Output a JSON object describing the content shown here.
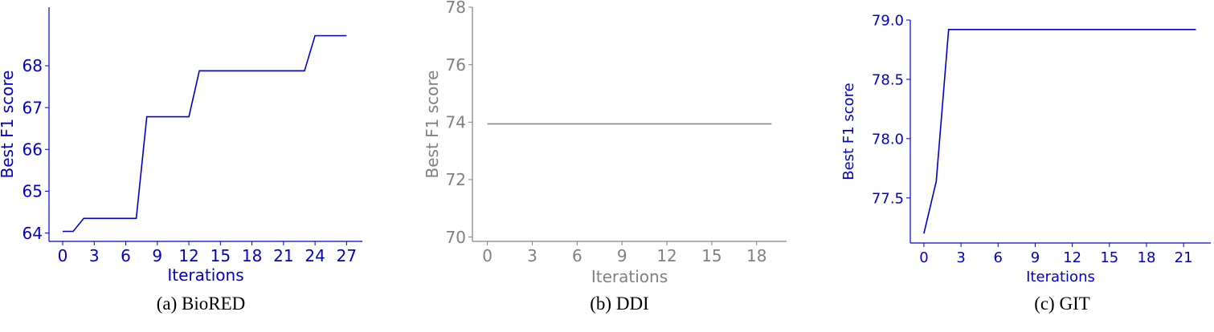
{
  "chart_data": [
    {
      "type": "line",
      "caption": "(a) BioRED",
      "color": "#0000cc",
      "xlabel": "Iterations",
      "ylabel": "Best F1 score",
      "xticks": [
        0,
        3,
        6,
        9,
        12,
        15,
        18,
        21,
        24,
        27
      ],
      "yticks": [
        64,
        65,
        66,
        67,
        68
      ],
      "xlim": [
        -1.3,
        28.5
      ],
      "ylim": [
        63.8,
        69.4
      ],
      "x": [
        0,
        1,
        2,
        3,
        4,
        5,
        6,
        7,
        8,
        9,
        10,
        11,
        12,
        13,
        14,
        15,
        16,
        17,
        18,
        19,
        20,
        21,
        22,
        23,
        24,
        25,
        26,
        27
      ],
      "y": [
        64.04,
        64.04,
        64.35,
        64.35,
        64.35,
        64.35,
        64.35,
        64.35,
        66.78,
        66.78,
        66.78,
        66.78,
        66.78,
        67.88,
        67.88,
        67.88,
        67.88,
        67.88,
        67.88,
        67.88,
        67.88,
        67.88,
        67.88,
        67.88,
        68.72,
        68.72,
        68.72,
        68.72
      ],
      "grid": false
    },
    {
      "type": "line",
      "caption": "(b) DDI",
      "color": "#808080",
      "xlabel": "Iterations",
      "ylabel": "Best F1 score",
      "xticks": [
        0,
        3,
        6,
        9,
        12,
        15,
        18
      ],
      "yticks": [
        70,
        72,
        74,
        76,
        78
      ],
      "xlim": [
        -1,
        20
      ],
      "ylim": [
        69.85,
        78
      ],
      "x": [
        0,
        1,
        2,
        3,
        4,
        5,
        6,
        7,
        8,
        9,
        10,
        11,
        12,
        13,
        14,
        15,
        16,
        17,
        18,
        19
      ],
      "y": [
        73.94,
        73.94,
        73.94,
        73.94,
        73.94,
        73.94,
        73.94,
        73.94,
        73.94,
        73.94,
        73.94,
        73.94,
        73.94,
        73.94,
        73.94,
        73.94,
        73.94,
        73.94,
        73.94,
        73.94
      ],
      "grid": false
    },
    {
      "type": "line",
      "caption": "(c) GIT",
      "color": "#0000cc",
      "xlabel": "Iterations",
      "ylabel": "Best F1 score",
      "xticks": [
        0,
        3,
        6,
        9,
        12,
        15,
        18,
        21
      ],
      "yticks": [
        77.5,
        78.0,
        78.5,
        79.0
      ],
      "ytick_labels": [
        "77.5",
        "78.0",
        "78.5",
        "79.0"
      ],
      "xlim": [
        -1.1,
        23.2
      ],
      "ylim": [
        77.12,
        79.0
      ],
      "x": [
        0,
        1,
        2,
        3,
        4,
        5,
        6,
        7,
        8,
        9,
        10,
        11,
        12,
        13,
        14,
        15,
        16,
        17,
        18,
        19,
        20,
        21,
        22
      ],
      "y": [
        77.2,
        77.64,
        78.92,
        78.92,
        78.92,
        78.92,
        78.92,
        78.92,
        78.92,
        78.92,
        78.92,
        78.92,
        78.92,
        78.92,
        78.92,
        78.92,
        78.92,
        78.92,
        78.92,
        78.92,
        78.92,
        78.92,
        78.92
      ],
      "grid": false
    }
  ]
}
